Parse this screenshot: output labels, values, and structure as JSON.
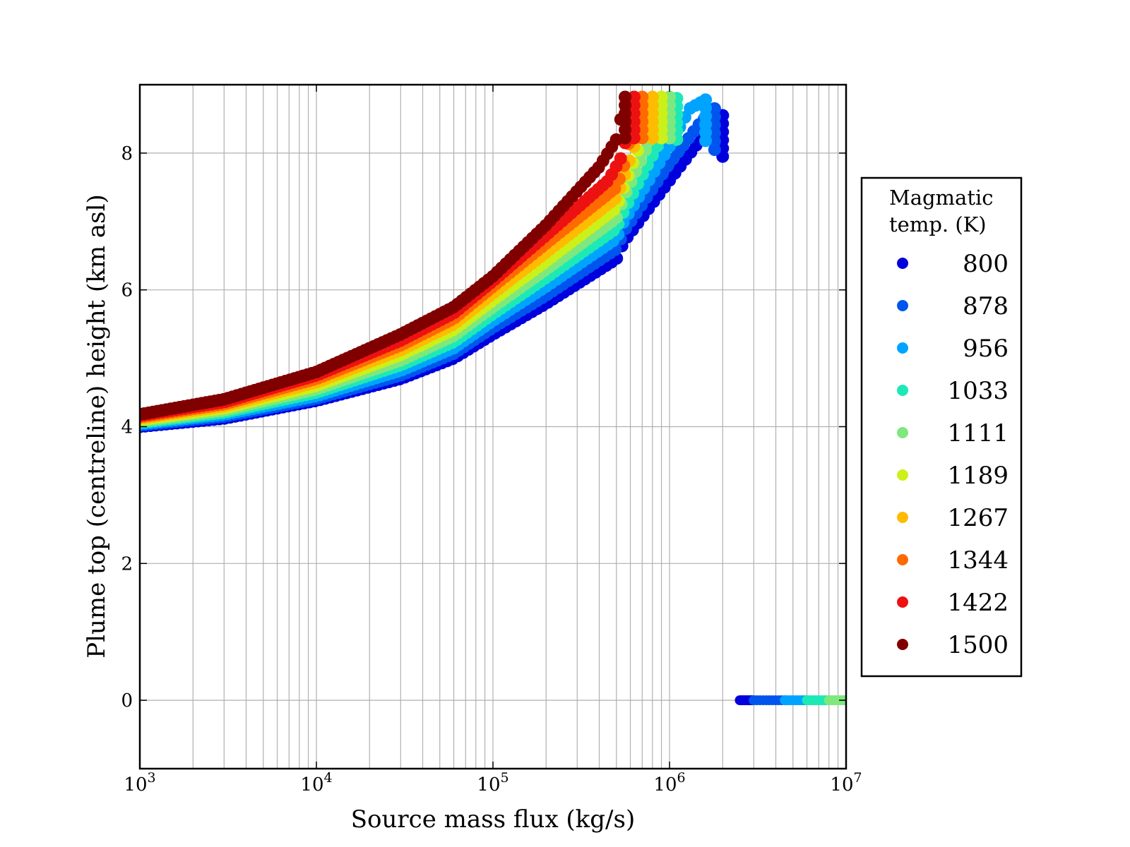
{
  "chart_data": {
    "type": "scatter",
    "xlabel": "Source mass flux (kg/s)",
    "ylabel": "Plume top (centreline) height (km asl)",
    "xscale": "log",
    "xlim": [
      1000,
      10000000
    ],
    "ylim": [
      -1,
      9
    ],
    "x_ticks": [
      {
        "value": 1000,
        "base": "10",
        "exp": "3"
      },
      {
        "value": 10000,
        "base": "10",
        "exp": "4"
      },
      {
        "value": 100000,
        "base": "10",
        "exp": "5"
      },
      {
        "value": 1000000,
        "base": "10",
        "exp": "6"
      },
      {
        "value": 10000000,
        "base": "10",
        "exp": "7"
      }
    ],
    "y_ticks": [
      0,
      2,
      4,
      6,
      8
    ],
    "grid": true,
    "legend": {
      "title_lines": [
        "Magmatic",
        "temp. (K)"
      ],
      "placement": "right-outside"
    },
    "series": [
      {
        "name": "800",
        "color": "#0000dd",
        "curve": {
          "x": [
            1000,
            3000,
            10000,
            30000,
            60000,
            100000,
            200000,
            500000,
            550000,
            1000000,
            1500000,
            2000000
          ],
          "y": [
            4.0,
            4.12,
            4.38,
            4.7,
            5.0,
            5.35,
            5.8,
            6.45,
            6.7,
            7.6,
            8.2,
            8.55
          ]
        },
        "x_max": 2000000,
        "collapsed": {
          "x_min": 2500000,
          "x_max": 3000000
        }
      },
      {
        "name": "878",
        "color": "#0055ee",
        "curve": {
          "x": [
            1000,
            3000,
            10000,
            30000,
            60000,
            100000,
            200000,
            500000,
            550000,
            1000000,
            1500000,
            1800000
          ],
          "y": [
            4.02,
            4.15,
            4.41,
            4.75,
            5.07,
            5.45,
            5.92,
            6.6,
            6.85,
            7.85,
            8.45,
            8.65
          ]
        },
        "x_max": 1800000,
        "collapsed": {
          "x_min": 3000000,
          "x_max": 4500000
        }
      },
      {
        "name": "956",
        "color": "#00a4ff",
        "curve": {
          "x": [
            1000,
            3000,
            10000,
            30000,
            60000,
            100000,
            200000,
            500000,
            550000,
            1000000,
            1300000,
            1600000
          ],
          "y": [
            4.04,
            4.18,
            4.45,
            4.82,
            5.15,
            5.55,
            6.05,
            6.75,
            7.0,
            8.1,
            8.65,
            8.78
          ]
        },
        "x_max": 1600000,
        "collapsed": {
          "x_min": 4500000,
          "x_max": 6000000
        }
      },
      {
        "name": "1033",
        "color": "#1de9b6",
        "curve": {
          "x": [
            1000,
            3000,
            10000,
            30000,
            60000,
            100000,
            200000,
            500000,
            550000,
            1000000,
            1100000
          ],
          "y": [
            4.06,
            4.21,
            4.5,
            4.9,
            5.24,
            5.65,
            6.18,
            6.9,
            7.15,
            8.45,
            8.8
          ]
        },
        "x_max": 1100000,
        "collapsed": {
          "x_min": 6000000,
          "x_max": 8000000
        }
      },
      {
        "name": "1111",
        "color": "#7ee87e",
        "curve": {
          "x": [
            1000,
            3000,
            10000,
            30000,
            60000,
            100000,
            200000,
            500000,
            550000,
            900000,
            1000000
          ],
          "y": [
            4.08,
            4.24,
            4.55,
            4.97,
            5.33,
            5.75,
            6.3,
            7.05,
            7.35,
            8.55,
            8.82
          ]
        },
        "x_max": 1000000,
        "collapsed": {
          "x_min": 8000000,
          "x_max": 10000000
        }
      },
      {
        "name": "1189",
        "color": "#ccf01a",
        "curve": {
          "x": [
            1000,
            3000,
            10000,
            30000,
            60000,
            100000,
            200000,
            500000,
            550000,
            800000,
            900000
          ],
          "y": [
            4.1,
            4.27,
            4.6,
            5.05,
            5.42,
            5.85,
            6.42,
            7.2,
            7.5,
            8.6,
            8.82
          ]
        },
        "x_max": 900000,
        "collapsed": null
      },
      {
        "name": "1267",
        "color": "#ffbb00",
        "curve": {
          "x": [
            1000,
            3000,
            10000,
            30000,
            60000,
            100000,
            200000,
            500000,
            550000,
            750000,
            800000
          ],
          "y": [
            4.12,
            4.3,
            4.65,
            5.12,
            5.5,
            5.95,
            6.55,
            7.35,
            7.65,
            8.7,
            8.82
          ]
        },
        "x_max": 800000,
        "collapsed": null
      },
      {
        "name": "1344",
        "color": "#ff6a00",
        "curve": {
          "x": [
            1000,
            3000,
            10000,
            30000,
            60000,
            100000,
            200000,
            500000,
            550000,
            650000,
            700000
          ],
          "y": [
            4.14,
            4.33,
            4.7,
            5.19,
            5.58,
            6.05,
            6.68,
            7.5,
            7.8,
            8.7,
            8.82
          ]
        },
        "x_max": 700000,
        "collapsed": null
      },
      {
        "name": "1422",
        "color": "#ee1111",
        "curve": {
          "x": [
            1000,
            3000,
            10000,
            30000,
            60000,
            100000,
            200000,
            450000,
            550000,
            600000,
            630000
          ],
          "y": [
            4.16,
            4.36,
            4.75,
            5.26,
            5.66,
            6.13,
            6.8,
            7.6,
            8.0,
            8.7,
            8.82
          ]
        },
        "x_max": 630000,
        "collapsed": null
      },
      {
        "name": "1500",
        "color": "#800000",
        "curve": {
          "x": [
            1000,
            3000,
            10000,
            30000,
            60000,
            100000,
            200000,
            400000,
            500000,
            550000,
            560000
          ],
          "y": [
            4.18,
            4.4,
            4.8,
            5.35,
            5.75,
            6.2,
            6.95,
            7.8,
            8.2,
            8.7,
            8.82
          ]
        },
        "x_max": 560000,
        "collapsed": null
      }
    ]
  }
}
